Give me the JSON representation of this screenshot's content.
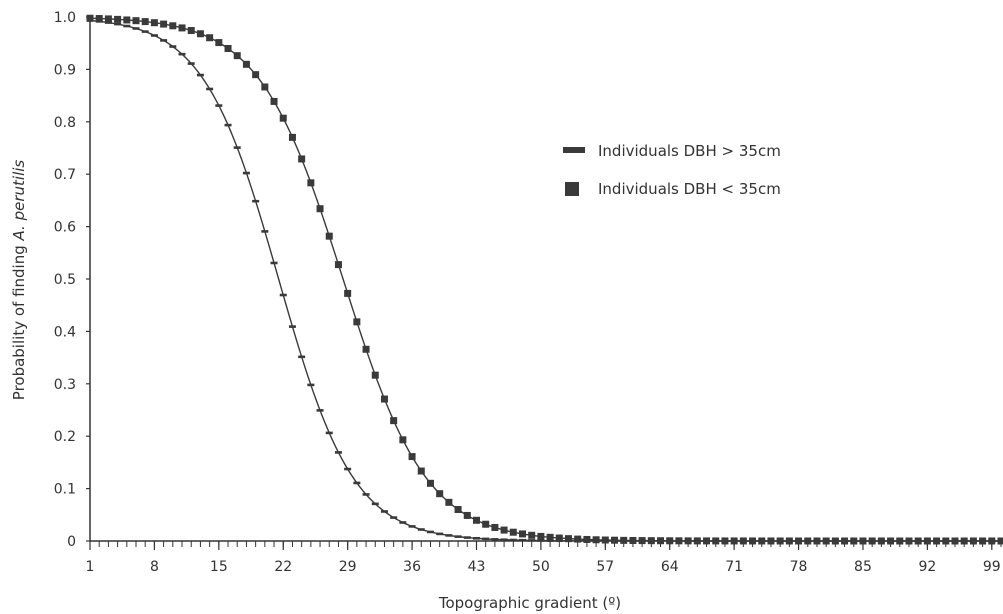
{
  "chart_data": {
    "type": "line",
    "title": "",
    "xlabel": "Topographic gradient (º)",
    "ylabel_prefix": "Probability of finding ",
    "ylabel_italic": "A. perutilis",
    "xlim": [
      1,
      100
    ],
    "ylim": [
      0,
      1.0
    ],
    "x_ticks": [
      "1",
      "8",
      "15",
      "22",
      "29",
      "36",
      "43",
      "50",
      "57",
      "64",
      "71",
      "78",
      "85",
      "92",
      "99"
    ],
    "y_ticks": [
      "0",
      "0.1",
      "0.2",
      "0.3",
      "0.4",
      "0.5",
      "0.6",
      "0.7",
      "0.8",
      "0.9",
      "1.0"
    ],
    "grid": false,
    "legend_position": "right-middle",
    "series": [
      {
        "name": "Individuals DBH > 35cm",
        "marker": "dash",
        "color": "#3a3a3a",
        "model": "logistic",
        "midpoint_x": 21.5,
        "steepness": 0.245
      },
      {
        "name": "Individuals DBH < 35cm",
        "marker": "square",
        "color": "#3a3a3a",
        "model": "logistic",
        "midpoint_x": 28.5,
        "steepness": 0.22
      }
    ]
  }
}
